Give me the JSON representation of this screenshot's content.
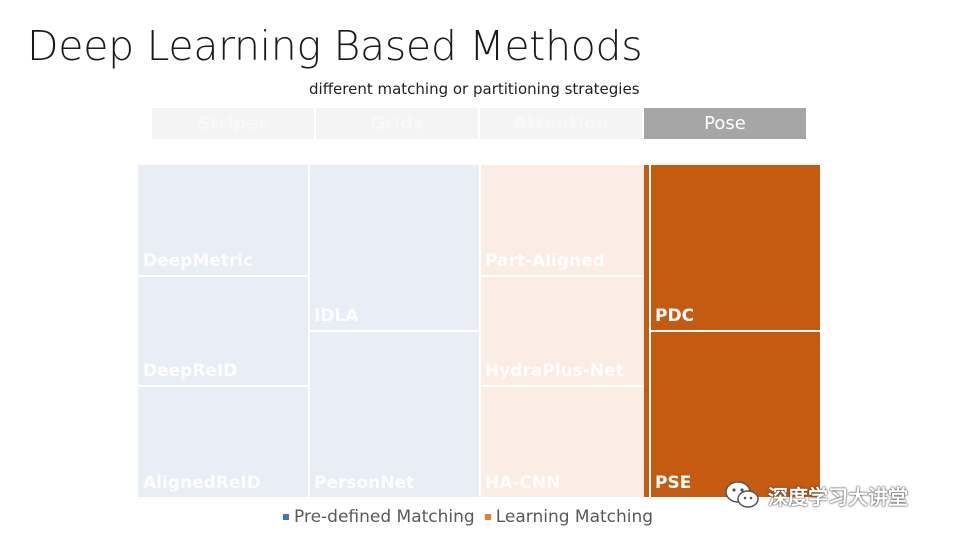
{
  "slide": {
    "title": "Deep Learning Based Methods",
    "subtitle": "different matching or partitioning strategies"
  },
  "tabs": [
    {
      "label": "Stripes",
      "active": false
    },
    {
      "label": "Grids",
      "active": false
    },
    {
      "label": "Attention",
      "active": false
    },
    {
      "label": "Pose",
      "active": true
    }
  ],
  "treemap": {
    "columns": [
      {
        "group": "Stripes",
        "category": "Pre-defined Matching",
        "items": [
          "DeepMetric",
          "DeepReID",
          "AlignedReID"
        ]
      },
      {
        "group": "Grids",
        "category": "Pre-defined Matching",
        "items": [
          "IDLA",
          "PersonNet"
        ]
      },
      {
        "group": "Attention",
        "category": "Learning Matching",
        "items": [
          "Part-Aligned",
          "HydraPlus-Net",
          "HA-CNN"
        ]
      },
      {
        "group": "Pose",
        "category": "Learning Matching",
        "items": [
          "PDC",
          "PSE"
        ]
      }
    ]
  },
  "legend": {
    "items": [
      {
        "label": "Pre-defined Matching",
        "color": "#4472c4"
      },
      {
        "label": "Learning Matching",
        "color": "#ed7d31"
      }
    ]
  },
  "watermark": {
    "text": "深度学习大讲堂"
  },
  "colors": {
    "pre_defined_fill": "#e9edf5",
    "attention_fill": "#fbece4",
    "pose_fill": "#c55a11",
    "active_tab": "#a6a6a6"
  }
}
